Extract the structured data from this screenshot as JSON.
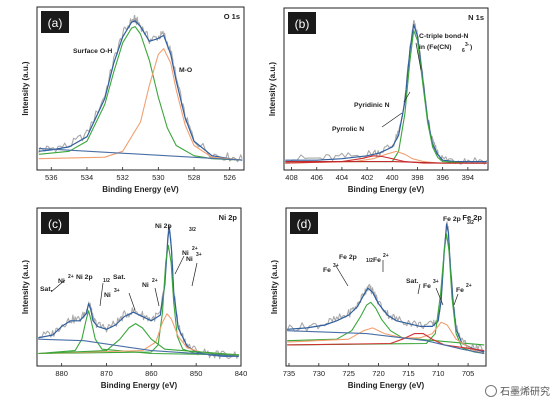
{
  "chart_data": [
    {
      "type": "line",
      "panel_label": "(a)",
      "title": "O 1s",
      "xlabel": "Binding Energy (eV)",
      "ylabel": "Intensity (a.u.)",
      "xlim": [
        536.8,
        525.2
      ],
      "x_reversed": true,
      "xticks": [
        536,
        534,
        532,
        530,
        528,
        526
      ],
      "annotations": [
        "Surface O-H",
        "M-O"
      ],
      "series": [
        {
          "role": "raw",
          "color": "#a9a9a9",
          "x": [
            536.7,
            536,
            535,
            534,
            533,
            532.5,
            532,
            531.5,
            531.3,
            531,
            530.5,
            530,
            529.7,
            529.3,
            529,
            528.5,
            528,
            527,
            526,
            525.3
          ],
          "y": [
            0.11,
            0.12,
            0.14,
            0.22,
            0.48,
            0.72,
            0.9,
            0.99,
            1.0,
            0.96,
            0.86,
            0.88,
            0.9,
            0.78,
            0.6,
            0.34,
            0.18,
            0.08,
            0.06,
            0.05
          ]
        },
        {
          "role": "envelope",
          "color": "#2f5f9e",
          "x": [
            536.7,
            536,
            535,
            534,
            533,
            532.5,
            532,
            531.5,
            531.3,
            531,
            530.5,
            530,
            529.7,
            529.3,
            529,
            528.5,
            528,
            527,
            526,
            525.3
          ],
          "y": [
            0.1,
            0.11,
            0.13,
            0.2,
            0.46,
            0.7,
            0.88,
            0.98,
            0.99,
            0.95,
            0.85,
            0.87,
            0.89,
            0.76,
            0.58,
            0.33,
            0.17,
            0.07,
            0.05,
            0.04
          ]
        },
        {
          "role": "component",
          "name": "Surface O-H",
          "color": "#3aa63a",
          "x": [
            536.7,
            535,
            534,
            533,
            532.5,
            532,
            531.5,
            531.3,
            531,
            530.5,
            530,
            529.5,
            529,
            528,
            527,
            525.3
          ],
          "y": [
            0.08,
            0.1,
            0.17,
            0.42,
            0.64,
            0.84,
            0.94,
            0.95,
            0.9,
            0.72,
            0.47,
            0.26,
            0.14,
            0.07,
            0.05,
            0.04
          ]
        },
        {
          "role": "component",
          "name": "M-O",
          "color": "#f2a070",
          "x": [
            536.7,
            533,
            532,
            531,
            530.5,
            530,
            529.7,
            529.3,
            529,
            528.5,
            528,
            527,
            525.3
          ],
          "y": [
            0.05,
            0.06,
            0.1,
            0.3,
            0.55,
            0.76,
            0.8,
            0.7,
            0.52,
            0.28,
            0.14,
            0.06,
            0.04
          ]
        },
        {
          "role": "background",
          "color": "#4a6fa5",
          "x": [
            536.7,
            525.3
          ],
          "y": [
            0.12,
            0.04
          ]
        }
      ]
    },
    {
      "type": "line",
      "panel_label": "(b)",
      "title": "N 1s",
      "xlabel": "Binding Energy (eV)",
      "ylabel": "Intensity (a.u.)",
      "xlim": [
        408.6,
        392.4
      ],
      "x_reversed": true,
      "xticks": [
        408,
        406,
        404,
        402,
        400,
        398,
        396,
        394
      ],
      "annotations": [
        "C-triple bond-N",
        "in (Fe(CN)",
        "6",
        "3-",
        ")",
        "Pyridinic N",
        "Pyrrolic N"
      ],
      "series": [
        {
          "role": "raw",
          "color": "#a9a9a9",
          "x": [
            408.5,
            406,
            404,
            402,
            401,
            400,
            399.5,
            399,
            398.6,
            398.3,
            398,
            397.6,
            397.2,
            396.8,
            396.4,
            396,
            395,
            394,
            392.5
          ],
          "y": [
            0.05,
            0.05,
            0.06,
            0.08,
            0.1,
            0.14,
            0.22,
            0.45,
            0.8,
            0.98,
            0.9,
            0.62,
            0.33,
            0.16,
            0.09,
            0.05,
            0.04,
            0.04,
            0.04
          ]
        },
        {
          "role": "envelope",
          "color": "#2f5f9e",
          "x": [
            408.5,
            406,
            404,
            402,
            401,
            400,
            399.5,
            399,
            398.6,
            398.3,
            398,
            397.6,
            397.2,
            396.8,
            396.4,
            396,
            395,
            394,
            392.5
          ],
          "y": [
            0.04,
            0.04,
            0.05,
            0.07,
            0.09,
            0.13,
            0.21,
            0.44,
            0.79,
            0.97,
            0.89,
            0.61,
            0.32,
            0.15,
            0.08,
            0.04,
            0.03,
            0.03,
            0.03
          ]
        },
        {
          "role": "component",
          "name": "C-triple bond-N",
          "color": "#3aa63a",
          "x": [
            408.5,
            400,
            399.5,
            399,
            398.6,
            398.3,
            398,
            397.6,
            397.2,
            396.8,
            396.4,
            396,
            394,
            392.5
          ],
          "y": [
            0.03,
            0.03,
            0.1,
            0.36,
            0.72,
            0.93,
            0.86,
            0.58,
            0.3,
            0.13,
            0.06,
            0.03,
            0.02,
            0.02
          ]
        },
        {
          "role": "component",
          "name": "Pyridinic N",
          "color": "#f2a070",
          "x": [
            408.5,
            403,
            401.5,
            400.5,
            399.7,
            399,
            398.4,
            397.5,
            396.5,
            392.5
          ],
          "y": [
            0.02,
            0.03,
            0.05,
            0.08,
            0.1,
            0.08,
            0.05,
            0.03,
            0.02,
            0.02
          ]
        },
        {
          "role": "component",
          "name": "Pyrrolic N",
          "color": "#d03030",
          "x": [
            408.5,
            404,
            402.5,
            401.5,
            400.8,
            400,
            399,
            397.5,
            395,
            392.5
          ],
          "y": [
            0.02,
            0.03,
            0.05,
            0.07,
            0.065,
            0.05,
            0.03,
            0.02,
            0.02,
            0.02
          ]
        },
        {
          "role": "background",
          "color": "#c02a2a",
          "x": [
            408.5,
            400,
            396,
            392.5
          ],
          "y": [
            0.03,
            0.03,
            0.02,
            0.02
          ]
        }
      ]
    },
    {
      "type": "line",
      "panel_label": "(c)",
      "title": "Ni 2p",
      "xlabel": "Binding Energy (eV)",
      "ylabel": "Intensity (a.u.)",
      "xlim": [
        885.5,
        840
      ],
      "x_reversed": true,
      "xticks": [
        880,
        870,
        860,
        850,
        840
      ],
      "annotations": [
        "Sat.",
        "Ni",
        "2+",
        "Ni 2p",
        "1/2",
        "Ni",
        "3+",
        "Sat.",
        "Ni",
        "2+",
        "Ni",
        "2+",
        "Ni 2p",
        "3/2",
        "Ni",
        "3+"
      ],
      "series": [
        {
          "role": "raw",
          "color": "#a9a9a9",
          "x": [
            885.2,
            882,
            880,
            878,
            876,
            874.5,
            874,
            873.5,
            873,
            872,
            870,
            868,
            866,
            864,
            862,
            860,
            858,
            857,
            856.3,
            856,
            855.5,
            855,
            854,
            852,
            850,
            847,
            844,
            840.5
          ],
          "y": [
            0.18,
            0.2,
            0.26,
            0.3,
            0.3,
            0.35,
            0.42,
            0.38,
            0.3,
            0.26,
            0.24,
            0.27,
            0.33,
            0.36,
            0.33,
            0.3,
            0.34,
            0.55,
            0.88,
            0.96,
            0.8,
            0.5,
            0.25,
            0.12,
            0.08,
            0.06,
            0.05,
            0.05
          ]
        },
        {
          "role": "envelope",
          "color": "#2f5f9e",
          "x": [
            885.2,
            882,
            880,
            878,
            876,
            874.5,
            874,
            873.5,
            873,
            872,
            870,
            868,
            866,
            864,
            862,
            860,
            858,
            857,
            856.3,
            856,
            855.5,
            855,
            854,
            852,
            850,
            847,
            844,
            840.5
          ],
          "y": [
            0.17,
            0.19,
            0.25,
            0.29,
            0.29,
            0.34,
            0.41,
            0.37,
            0.29,
            0.25,
            0.23,
            0.26,
            0.32,
            0.35,
            0.32,
            0.29,
            0.33,
            0.54,
            0.87,
            0.95,
            0.79,
            0.49,
            0.24,
            0.11,
            0.07,
            0.05,
            0.04,
            0.04
          ]
        },
        {
          "role": "component",
          "name": "Ni 2p3/2 Ni2+",
          "color": "#3aa63a",
          "x": [
            885.2,
            860,
            858.5,
            857.5,
            856.8,
            856.2,
            855.6,
            855,
            854.2,
            853,
            850,
            840.5
          ],
          "y": [
            0.06,
            0.07,
            0.12,
            0.35,
            0.7,
            0.82,
            0.7,
            0.42,
            0.18,
            0.09,
            0.06,
            0.05
          ]
        },
        {
          "role": "component",
          "name": "Ni 2p1/2 Ni2+",
          "color": "#3aa63a",
          "x": [
            885.2,
            877,
            875.5,
            874.5,
            874,
            873.5,
            872.5,
            871,
            860,
            840.5
          ],
          "y": [
            0.06,
            0.08,
            0.16,
            0.3,
            0.36,
            0.3,
            0.16,
            0.09,
            0.06,
            0.05
          ]
        },
        {
          "role": "component",
          "name": "Ni3+",
          "color": "#f2a070",
          "x": [
            885.2,
            862,
            859,
            857.5,
            856.5,
            855.5,
            854,
            852,
            849,
            840.5
          ],
          "y": [
            0.06,
            0.08,
            0.14,
            0.28,
            0.34,
            0.3,
            0.18,
            0.1,
            0.07,
            0.05
          ]
        },
        {
          "role": "component",
          "name": "Sat.",
          "color": "#3aa63a",
          "x": [
            885.2,
            870,
            867,
            865,
            863.5,
            862,
            860,
            857,
            840.5
          ],
          "y": [
            0.06,
            0.08,
            0.16,
            0.24,
            0.27,
            0.24,
            0.16,
            0.09,
            0.05
          ]
        },
        {
          "role": "background",
          "color": "#4a6fa5",
          "x": [
            885.2,
            875,
            860,
            840.5
          ],
          "y": [
            0.16,
            0.15,
            0.08,
            0.04
          ]
        }
      ]
    },
    {
      "type": "line",
      "panel_label": "(d)",
      "title": "Fe 2p",
      "xlabel": "Binding Energy (eV)",
      "ylabel": "Intensity (a.u.)",
      "xlim": [
        735.5,
        702
      ],
      "x_reversed": true,
      "xticks": [
        735,
        730,
        725,
        720,
        715,
        710,
        705
      ],
      "annotations": [
        "Fe",
        "3+",
        "Fe 2p",
        "1/2",
        "Fe",
        "2+",
        "Sat.",
        "Fe",
        "3+",
        "Fe 2p",
        "3/2",
        "Fe",
        "2+"
      ],
      "series": [
        {
          "role": "raw",
          "color": "#a9a9a9",
          "x": [
            735.3,
            732,
            729,
            727,
            725,
            723.5,
            722.5,
            721.8,
            721,
            720,
            718.5,
            717,
            715,
            713,
            711,
            710,
            709.5,
            709,
            708.6,
            708.3,
            708,
            707.5,
            707,
            706,
            704,
            702.3
          ],
          "y": [
            0.24,
            0.25,
            0.27,
            0.3,
            0.34,
            0.4,
            0.48,
            0.53,
            0.5,
            0.42,
            0.34,
            0.3,
            0.28,
            0.26,
            0.26,
            0.3,
            0.45,
            0.78,
            0.98,
            0.92,
            0.7,
            0.42,
            0.24,
            0.14,
            0.1,
            0.08
          ]
        },
        {
          "role": "envelope",
          "color": "#2f5f9e",
          "x": [
            735.3,
            732,
            729,
            727,
            725,
            723.5,
            722.5,
            721.8,
            721,
            720,
            718.5,
            717,
            715,
            713,
            711,
            710,
            709.5,
            709,
            708.6,
            708.3,
            708,
            707.5,
            707,
            706,
            704,
            702.3
          ],
          "y": [
            0.23,
            0.24,
            0.26,
            0.29,
            0.33,
            0.39,
            0.47,
            0.52,
            0.49,
            0.41,
            0.33,
            0.29,
            0.27,
            0.25,
            0.25,
            0.29,
            0.44,
            0.77,
            0.97,
            0.91,
            0.69,
            0.41,
            0.23,
            0.13,
            0.09,
            0.07
          ]
        },
        {
          "role": "component",
          "name": "Fe 2p1/2",
          "color": "#3aa63a",
          "x": [
            735.3,
            727,
            724.5,
            723,
            722,
            721.3,
            720.5,
            719.5,
            718,
            716,
            702.3
          ],
          "y": [
            0.15,
            0.16,
            0.22,
            0.32,
            0.4,
            0.42,
            0.38,
            0.3,
            0.22,
            0.17,
            0.12
          ]
        },
        {
          "role": "component",
          "name": "Fe 2p3/2",
          "color": "#3aa63a",
          "x": [
            735.3,
            712,
            710.5,
            709.6,
            709,
            708.6,
            708.2,
            707.7,
            707,
            706,
            704,
            702.3
          ],
          "y": [
            0.12,
            0.13,
            0.2,
            0.48,
            0.78,
            0.9,
            0.78,
            0.45,
            0.2,
            0.1,
            0.07,
            0.06
          ]
        },
        {
          "role": "component",
          "name": "Fe3+",
          "color": "#f2a070",
          "x": [
            735.3,
            725,
            722.5,
            721,
            719,
            716,
            713,
            711,
            709.5,
            708.5,
            707,
            704,
            702.3
          ],
          "y": [
            0.14,
            0.16,
            0.22,
            0.24,
            0.2,
            0.17,
            0.17,
            0.2,
            0.28,
            0.26,
            0.16,
            0.08,
            0.06
          ]
        },
        {
          "role": "component",
          "name": "Sat.",
          "color": "#d03030",
          "x": [
            735.3,
            718,
            716,
            714,
            712.5,
            711,
            709,
            702.3
          ],
          "y": [
            0.12,
            0.13,
            0.16,
            0.2,
            0.2,
            0.16,
            0.12,
            0.08
          ]
        },
        {
          "role": "background",
          "color": "#4a6fa5",
          "x": [
            735.3,
            722,
            712,
            706,
            702.3
          ],
          "y": [
            0.22,
            0.2,
            0.15,
            0.09,
            0.06
          ]
        }
      ]
    }
  ],
  "watermark": {
    "text": "石墨烯研究"
  }
}
